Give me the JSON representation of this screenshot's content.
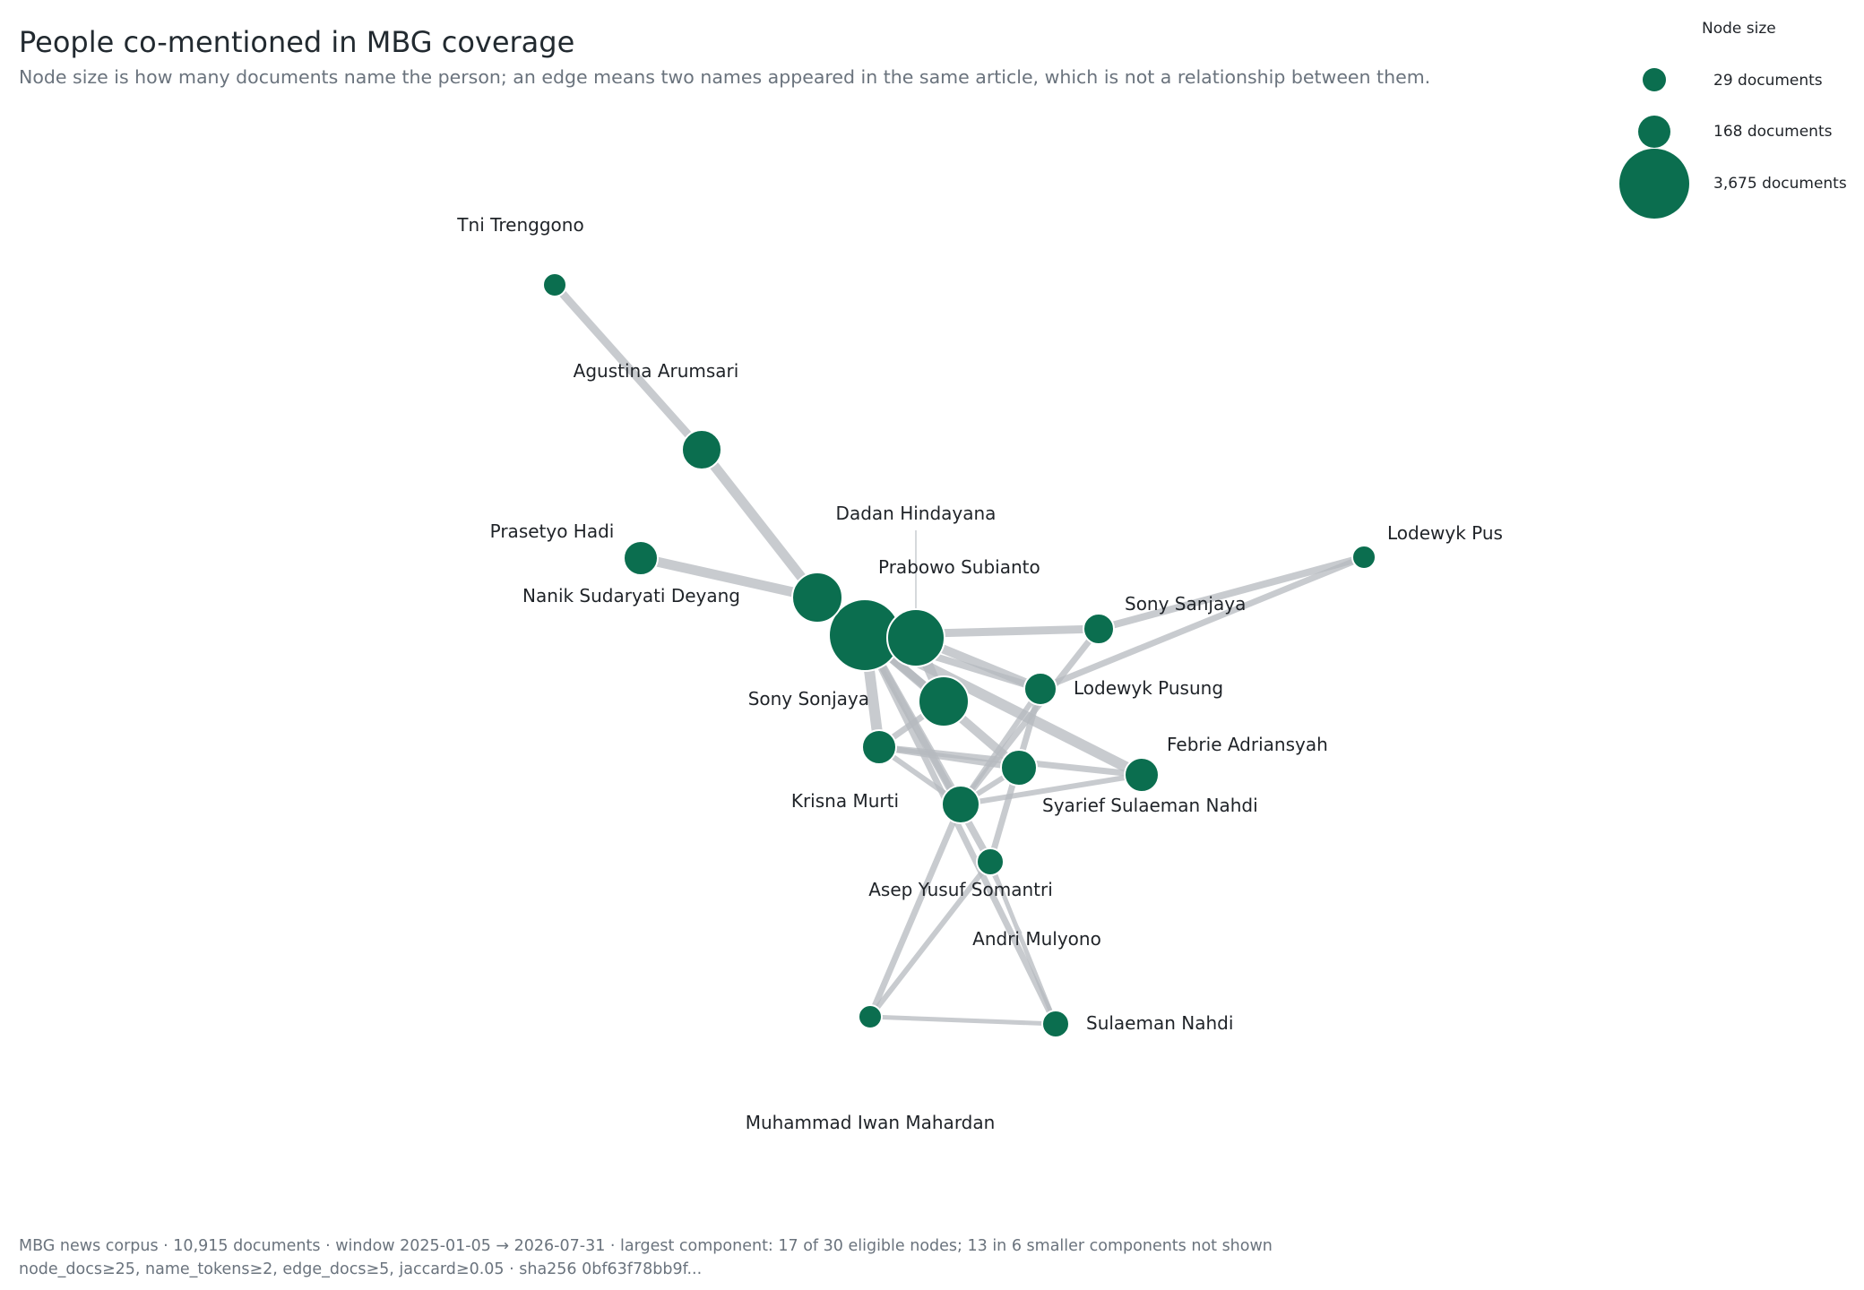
{
  "header": {
    "title": "People co-mentioned in MBG coverage",
    "subtitle": "Node size is how many documents name the person; an edge means two names appeared in the same article, which is not a relationship between them."
  },
  "legend": {
    "title": "Node size",
    "items": [
      {
        "docs": 29,
        "label": "29 documents"
      },
      {
        "docs": 168,
        "label": "168 documents"
      },
      {
        "docs": 3675,
        "label": "3,675 documents"
      }
    ]
  },
  "colors": {
    "node": "#0b6e4f",
    "node_stroke": "#ffffff",
    "edge": "#b6b9bf"
  },
  "nodes": [
    {
      "id": "sonjaya",
      "label": "Sony Sonjaya"
    },
    {
      "id": "prabowo",
      "label": "Prabowo Subianto"
    },
    {
      "id": "dadan",
      "label": "Dadan Hindayana"
    },
    {
      "id": "nanik",
      "label": "Nanik Sudaryati Deyang"
    },
    {
      "id": "agustina",
      "label": "Agustina Arumsari"
    },
    {
      "id": "prasetyo",
      "label": "Prasetyo Hadi"
    },
    {
      "id": "tni",
      "label": "Tni Trenggono"
    },
    {
      "id": "lodpus",
      "label": "Lodewyk Pus"
    },
    {
      "id": "sanjaya",
      "label": "Sony Sanjaya"
    },
    {
      "id": "lodewyk",
      "label": "Lodewyk Pusung"
    },
    {
      "id": "febrie",
      "label": "Febrie Adriansyah"
    },
    {
      "id": "krisna",
      "label": "Krisna Murti"
    },
    {
      "id": "syarief",
      "label": "Syarief Sulaeman Nahdi"
    },
    {
      "id": "asep",
      "label": "Asep Yusuf Somantri"
    },
    {
      "id": "andri",
      "label": "Andri Mulyono"
    },
    {
      "id": "sulaeman",
      "label": "Sulaeman Nahdi"
    },
    {
      "id": "iwan",
      "label": "Muhammad Iwan Mahardan"
    }
  ],
  "edges": [
    [
      "tni",
      "agustina"
    ],
    [
      "agustina",
      "nanik"
    ],
    [
      "prasetyo",
      "nanik"
    ],
    [
      "nanik",
      "dadan"
    ],
    [
      "dadan",
      "prabowo"
    ],
    [
      "dadan",
      "sonjaya"
    ],
    [
      "prabowo",
      "sonjaya"
    ],
    [
      "prabowo",
      "lodewyk"
    ],
    [
      "dadan",
      "krisna"
    ],
    [
      "sonjaya",
      "sanjaya"
    ],
    [
      "sonjaya",
      "lodewyk"
    ],
    [
      "sonjaya",
      "febrie"
    ],
    [
      "sonjaya",
      "krisna"
    ],
    [
      "sonjaya",
      "syarief"
    ],
    [
      "sonjaya",
      "asep"
    ],
    [
      "sonjaya",
      "andri"
    ],
    [
      "sonjaya",
      "sulaeman"
    ],
    [
      "sanjaya",
      "lodpus"
    ],
    [
      "sanjaya",
      "asep"
    ],
    [
      "lodewyk",
      "lodpus"
    ],
    [
      "lodewyk",
      "andri"
    ],
    [
      "lodewyk",
      "asep"
    ],
    [
      "krisna",
      "syarief"
    ],
    [
      "krisna",
      "asep"
    ],
    [
      "krisna",
      "febrie"
    ],
    [
      "syarief",
      "asep"
    ],
    [
      "asep",
      "febrie"
    ],
    [
      "asep",
      "iwan"
    ],
    [
      "andri",
      "iwan"
    ],
    [
      "andri",
      "sulaeman"
    ],
    [
      "iwan",
      "sulaeman"
    ]
  ],
  "footer": {
    "line1": "MBG news corpus · 10,915 documents · window 2025-01-05 → 2026-07-31 · largest component: 17 of 30 eligible nodes; 13 in 6 smaller components not shown",
    "line2": "node_docs≥25, name_tokens≥2, edge_docs≥5, jaccard≥0.05 · sha256 0bf63f78bb9f..."
  }
}
